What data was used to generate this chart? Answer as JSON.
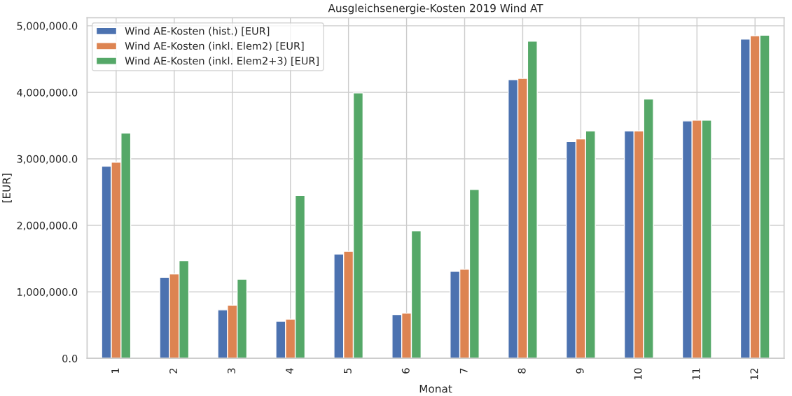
{
  "chart_data": {
    "type": "bar",
    "title": "Ausgleichsenergie-Kosten 2019 Wind AT",
    "xlabel": "Monat",
    "ylabel": "[EUR]",
    "categories": [
      "1",
      "2",
      "3",
      "4",
      "5",
      "6",
      "7",
      "8",
      "9",
      "10",
      "11",
      "12"
    ],
    "series": [
      {
        "name": "Wind AE-Kosten (hist.) [EUR]",
        "color": "#4c72b0",
        "values": [
          2890000,
          1220000,
          730000,
          560000,
          1570000,
          660000,
          1310000,
          4190000,
          3260000,
          3420000,
          3570000,
          4800000
        ]
      },
      {
        "name": "Wind AE-Kosten (inkl. Elem2) [EUR]",
        "color": "#dd8452",
        "values": [
          2950000,
          1270000,
          800000,
          590000,
          1610000,
          680000,
          1340000,
          4210000,
          3300000,
          3420000,
          3580000,
          4850000
        ]
      },
      {
        "name": "Wind AE-Kosten (inkl. Elem2+3) [EUR]",
        "color": "#55a868",
        "values": [
          3390000,
          1470000,
          1190000,
          2450000,
          3990000,
          1920000,
          2540000,
          4770000,
          3420000,
          3900000,
          3580000,
          4860000
        ]
      }
    ],
    "ylim": [
      0,
      5120000
    ],
    "yticks": [
      {
        "value": 0,
        "label": "0.0"
      },
      {
        "value": 1000000,
        "label": "1,000,000.0"
      },
      {
        "value": 2000000,
        "label": "2,000,000.0"
      },
      {
        "value": 3000000,
        "label": "3,000,000.0"
      },
      {
        "value": 4000000,
        "label": "4,000,000.0"
      },
      {
        "value": 5000000,
        "label": "5,000,000.0"
      }
    ],
    "grid": true,
    "legend": "top left"
  }
}
